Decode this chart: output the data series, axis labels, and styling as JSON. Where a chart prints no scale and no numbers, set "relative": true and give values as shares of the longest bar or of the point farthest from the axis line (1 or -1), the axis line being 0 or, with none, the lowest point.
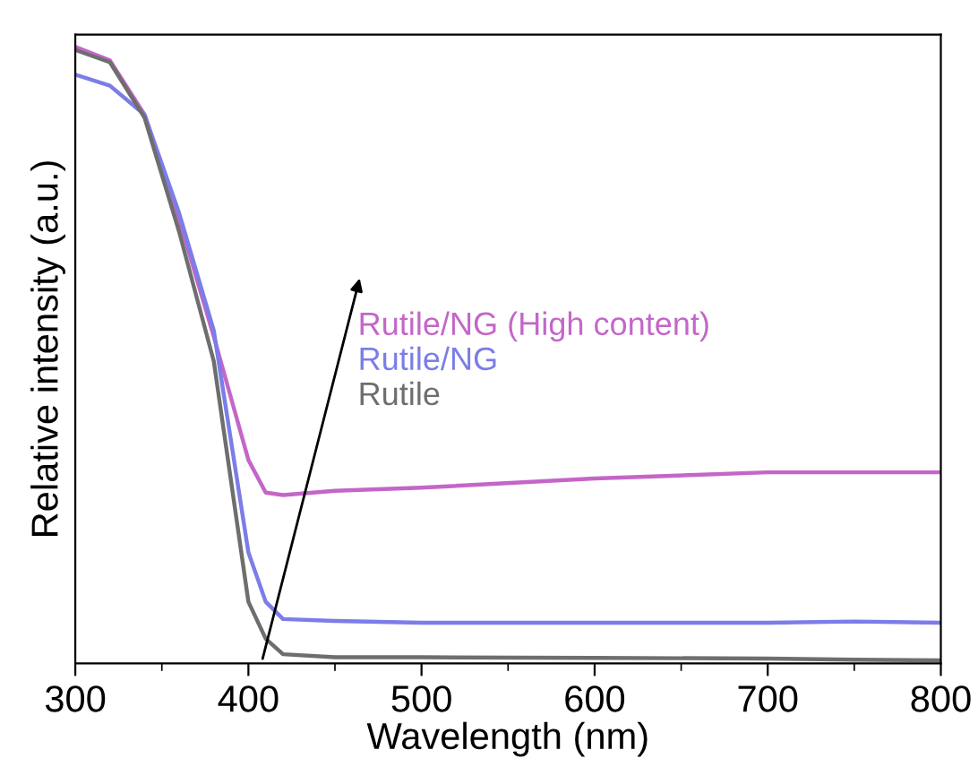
{
  "chart_data": {
    "type": "line",
    "relative": true,
    "xlabel": "Wavelength (nm)",
    "ylabel": "Relative intensity (a.u.)",
    "xlim": [
      300,
      800
    ],
    "xticks": [
      300,
      400,
      500,
      600,
      700,
      800
    ],
    "legend": "center",
    "grid": false,
    "marker": "none",
    "line_style": "solid",
    "series": [
      {
        "name": "Rutile/NG (High content)",
        "color": "#c466c8",
        "x": [
          300,
          320,
          340,
          360,
          380,
          400,
          410,
          420,
          450,
          500,
          600,
          700,
          750,
          800
        ],
        "values": [
          1.0,
          0.978,
          0.89,
          0.72,
          0.53,
          0.33,
          0.277,
          0.273,
          0.28,
          0.285,
          0.3,
          0.31,
          0.31,
          0.31
        ]
      },
      {
        "name": "Rutile/NG",
        "color": "#7b7de8",
        "x": [
          300,
          320,
          340,
          360,
          380,
          400,
          410,
          420,
          450,
          500,
          600,
          700,
          750,
          800
        ],
        "values": [
          0.955,
          0.937,
          0.89,
          0.73,
          0.54,
          0.18,
          0.1,
          0.072,
          0.069,
          0.066,
          0.066,
          0.066,
          0.068,
          0.066
        ]
      },
      {
        "name": "Rutile",
        "color": "#6e6e6e",
        "x": [
          300,
          320,
          340,
          360,
          380,
          400,
          410,
          420,
          450,
          500,
          600,
          700,
          750,
          800
        ],
        "values": [
          0.995,
          0.975,
          0.885,
          0.7,
          0.49,
          0.1,
          0.04,
          0.015,
          0.01,
          0.01,
          0.009,
          0.008,
          0.006,
          0.005
        ]
      }
    ]
  }
}
